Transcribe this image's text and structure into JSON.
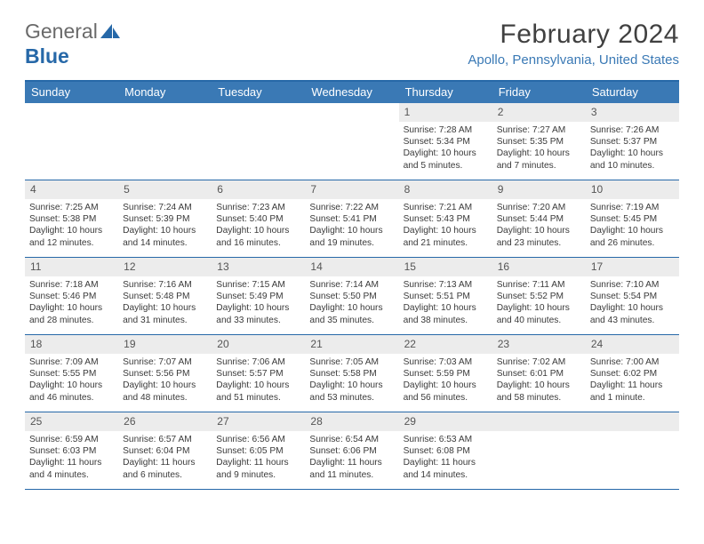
{
  "logo": {
    "text1": "General",
    "text2": "Blue"
  },
  "title": "February 2024",
  "location": "Apollo, Pennsylvania, United States",
  "colors": {
    "header_bg": "#3a79b5",
    "header_border": "#2668a8",
    "row_border": "#2668a8",
    "daynum_bg": "#ececec",
    "logo_blue": "#2668a8",
    "logo_gray": "#6a6a6a",
    "text": "#3a3a3a",
    "location_color": "#3a79b5"
  },
  "day_labels": [
    "Sunday",
    "Monday",
    "Tuesday",
    "Wednesday",
    "Thursday",
    "Friday",
    "Saturday"
  ],
  "weeks": [
    [
      {
        "n": "",
        "empty": true
      },
      {
        "n": "",
        "empty": true
      },
      {
        "n": "",
        "empty": true
      },
      {
        "n": "",
        "empty": true
      },
      {
        "n": "1",
        "sr": "Sunrise: 7:28 AM",
        "ss": "Sunset: 5:34 PM",
        "dl": "Daylight: 10 hours and 5 minutes."
      },
      {
        "n": "2",
        "sr": "Sunrise: 7:27 AM",
        "ss": "Sunset: 5:35 PM",
        "dl": "Daylight: 10 hours and 7 minutes."
      },
      {
        "n": "3",
        "sr": "Sunrise: 7:26 AM",
        "ss": "Sunset: 5:37 PM",
        "dl": "Daylight: 10 hours and 10 minutes."
      }
    ],
    [
      {
        "n": "4",
        "sr": "Sunrise: 7:25 AM",
        "ss": "Sunset: 5:38 PM",
        "dl": "Daylight: 10 hours and 12 minutes."
      },
      {
        "n": "5",
        "sr": "Sunrise: 7:24 AM",
        "ss": "Sunset: 5:39 PM",
        "dl": "Daylight: 10 hours and 14 minutes."
      },
      {
        "n": "6",
        "sr": "Sunrise: 7:23 AM",
        "ss": "Sunset: 5:40 PM",
        "dl": "Daylight: 10 hours and 16 minutes."
      },
      {
        "n": "7",
        "sr": "Sunrise: 7:22 AM",
        "ss": "Sunset: 5:41 PM",
        "dl": "Daylight: 10 hours and 19 minutes."
      },
      {
        "n": "8",
        "sr": "Sunrise: 7:21 AM",
        "ss": "Sunset: 5:43 PM",
        "dl": "Daylight: 10 hours and 21 minutes."
      },
      {
        "n": "9",
        "sr": "Sunrise: 7:20 AM",
        "ss": "Sunset: 5:44 PM",
        "dl": "Daylight: 10 hours and 23 minutes."
      },
      {
        "n": "10",
        "sr": "Sunrise: 7:19 AM",
        "ss": "Sunset: 5:45 PM",
        "dl": "Daylight: 10 hours and 26 minutes."
      }
    ],
    [
      {
        "n": "11",
        "sr": "Sunrise: 7:18 AM",
        "ss": "Sunset: 5:46 PM",
        "dl": "Daylight: 10 hours and 28 minutes."
      },
      {
        "n": "12",
        "sr": "Sunrise: 7:16 AM",
        "ss": "Sunset: 5:48 PM",
        "dl": "Daylight: 10 hours and 31 minutes."
      },
      {
        "n": "13",
        "sr": "Sunrise: 7:15 AM",
        "ss": "Sunset: 5:49 PM",
        "dl": "Daylight: 10 hours and 33 minutes."
      },
      {
        "n": "14",
        "sr": "Sunrise: 7:14 AM",
        "ss": "Sunset: 5:50 PM",
        "dl": "Daylight: 10 hours and 35 minutes."
      },
      {
        "n": "15",
        "sr": "Sunrise: 7:13 AM",
        "ss": "Sunset: 5:51 PM",
        "dl": "Daylight: 10 hours and 38 minutes."
      },
      {
        "n": "16",
        "sr": "Sunrise: 7:11 AM",
        "ss": "Sunset: 5:52 PM",
        "dl": "Daylight: 10 hours and 40 minutes."
      },
      {
        "n": "17",
        "sr": "Sunrise: 7:10 AM",
        "ss": "Sunset: 5:54 PM",
        "dl": "Daylight: 10 hours and 43 minutes."
      }
    ],
    [
      {
        "n": "18",
        "sr": "Sunrise: 7:09 AM",
        "ss": "Sunset: 5:55 PM",
        "dl": "Daylight: 10 hours and 46 minutes."
      },
      {
        "n": "19",
        "sr": "Sunrise: 7:07 AM",
        "ss": "Sunset: 5:56 PM",
        "dl": "Daylight: 10 hours and 48 minutes."
      },
      {
        "n": "20",
        "sr": "Sunrise: 7:06 AM",
        "ss": "Sunset: 5:57 PM",
        "dl": "Daylight: 10 hours and 51 minutes."
      },
      {
        "n": "21",
        "sr": "Sunrise: 7:05 AM",
        "ss": "Sunset: 5:58 PM",
        "dl": "Daylight: 10 hours and 53 minutes."
      },
      {
        "n": "22",
        "sr": "Sunrise: 7:03 AM",
        "ss": "Sunset: 5:59 PM",
        "dl": "Daylight: 10 hours and 56 minutes."
      },
      {
        "n": "23",
        "sr": "Sunrise: 7:02 AM",
        "ss": "Sunset: 6:01 PM",
        "dl": "Daylight: 10 hours and 58 minutes."
      },
      {
        "n": "24",
        "sr": "Sunrise: 7:00 AM",
        "ss": "Sunset: 6:02 PM",
        "dl": "Daylight: 11 hours and 1 minute."
      }
    ],
    [
      {
        "n": "25",
        "sr": "Sunrise: 6:59 AM",
        "ss": "Sunset: 6:03 PM",
        "dl": "Daylight: 11 hours and 4 minutes."
      },
      {
        "n": "26",
        "sr": "Sunrise: 6:57 AM",
        "ss": "Sunset: 6:04 PM",
        "dl": "Daylight: 11 hours and 6 minutes."
      },
      {
        "n": "27",
        "sr": "Sunrise: 6:56 AM",
        "ss": "Sunset: 6:05 PM",
        "dl": "Daylight: 11 hours and 9 minutes."
      },
      {
        "n": "28",
        "sr": "Sunrise: 6:54 AM",
        "ss": "Sunset: 6:06 PM",
        "dl": "Daylight: 11 hours and 11 minutes."
      },
      {
        "n": "29",
        "sr": "Sunrise: 6:53 AM",
        "ss": "Sunset: 6:08 PM",
        "dl": "Daylight: 11 hours and 14 minutes."
      },
      {
        "n": "",
        "empty": true
      },
      {
        "n": "",
        "empty": true
      }
    ]
  ]
}
